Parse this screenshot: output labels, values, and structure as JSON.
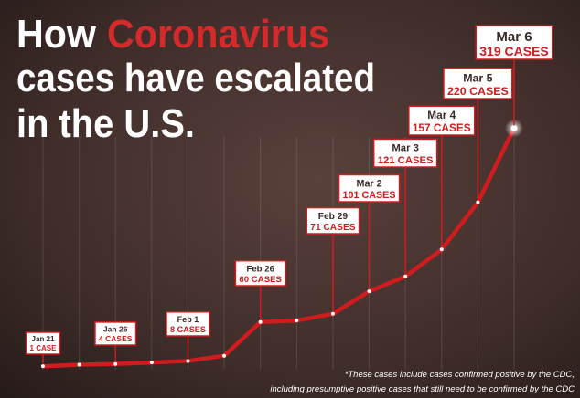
{
  "chart_data": {
    "type": "line",
    "title": [
      {
        "text": "How",
        "color": "#ffffff"
      },
      {
        "text": "Coronavirus",
        "color": "#d42a2c"
      },
      {
        "text": "cases have escalated",
        "color": "#ffffff"
      },
      {
        "text": "in the U.S.",
        "color": "#ffffff"
      }
    ],
    "categories": [
      "Jan 21",
      null,
      "Jan 26",
      null,
      "Feb 1",
      null,
      "Feb 26",
      null,
      "Feb 29",
      "Mar 2",
      "Mar 3",
      "Mar 4",
      "Mar 5",
      "Mar 6"
    ],
    "values": [
      1,
      3,
      4,
      6,
      8,
      15,
      60,
      62,
      71,
      101,
      121,
      157,
      220,
      319
    ],
    "value_labels": [
      "1 CASE",
      null,
      "4 CASES",
      null,
      "8 CASES",
      null,
      "60 CASES",
      null,
      "71 CASES",
      "101 CASES",
      "121 CASES",
      "157 CASES",
      "220 CASES",
      "319 CASES"
    ],
    "color": "#d01c1f",
    "ylim": [
      0,
      400
    ],
    "grid": true,
    "footnote": [
      "*These cases include cases confirmed positive by the CDC,",
      "including presumptive positive cases that still need to be confirmed by the CDC"
    ]
  }
}
